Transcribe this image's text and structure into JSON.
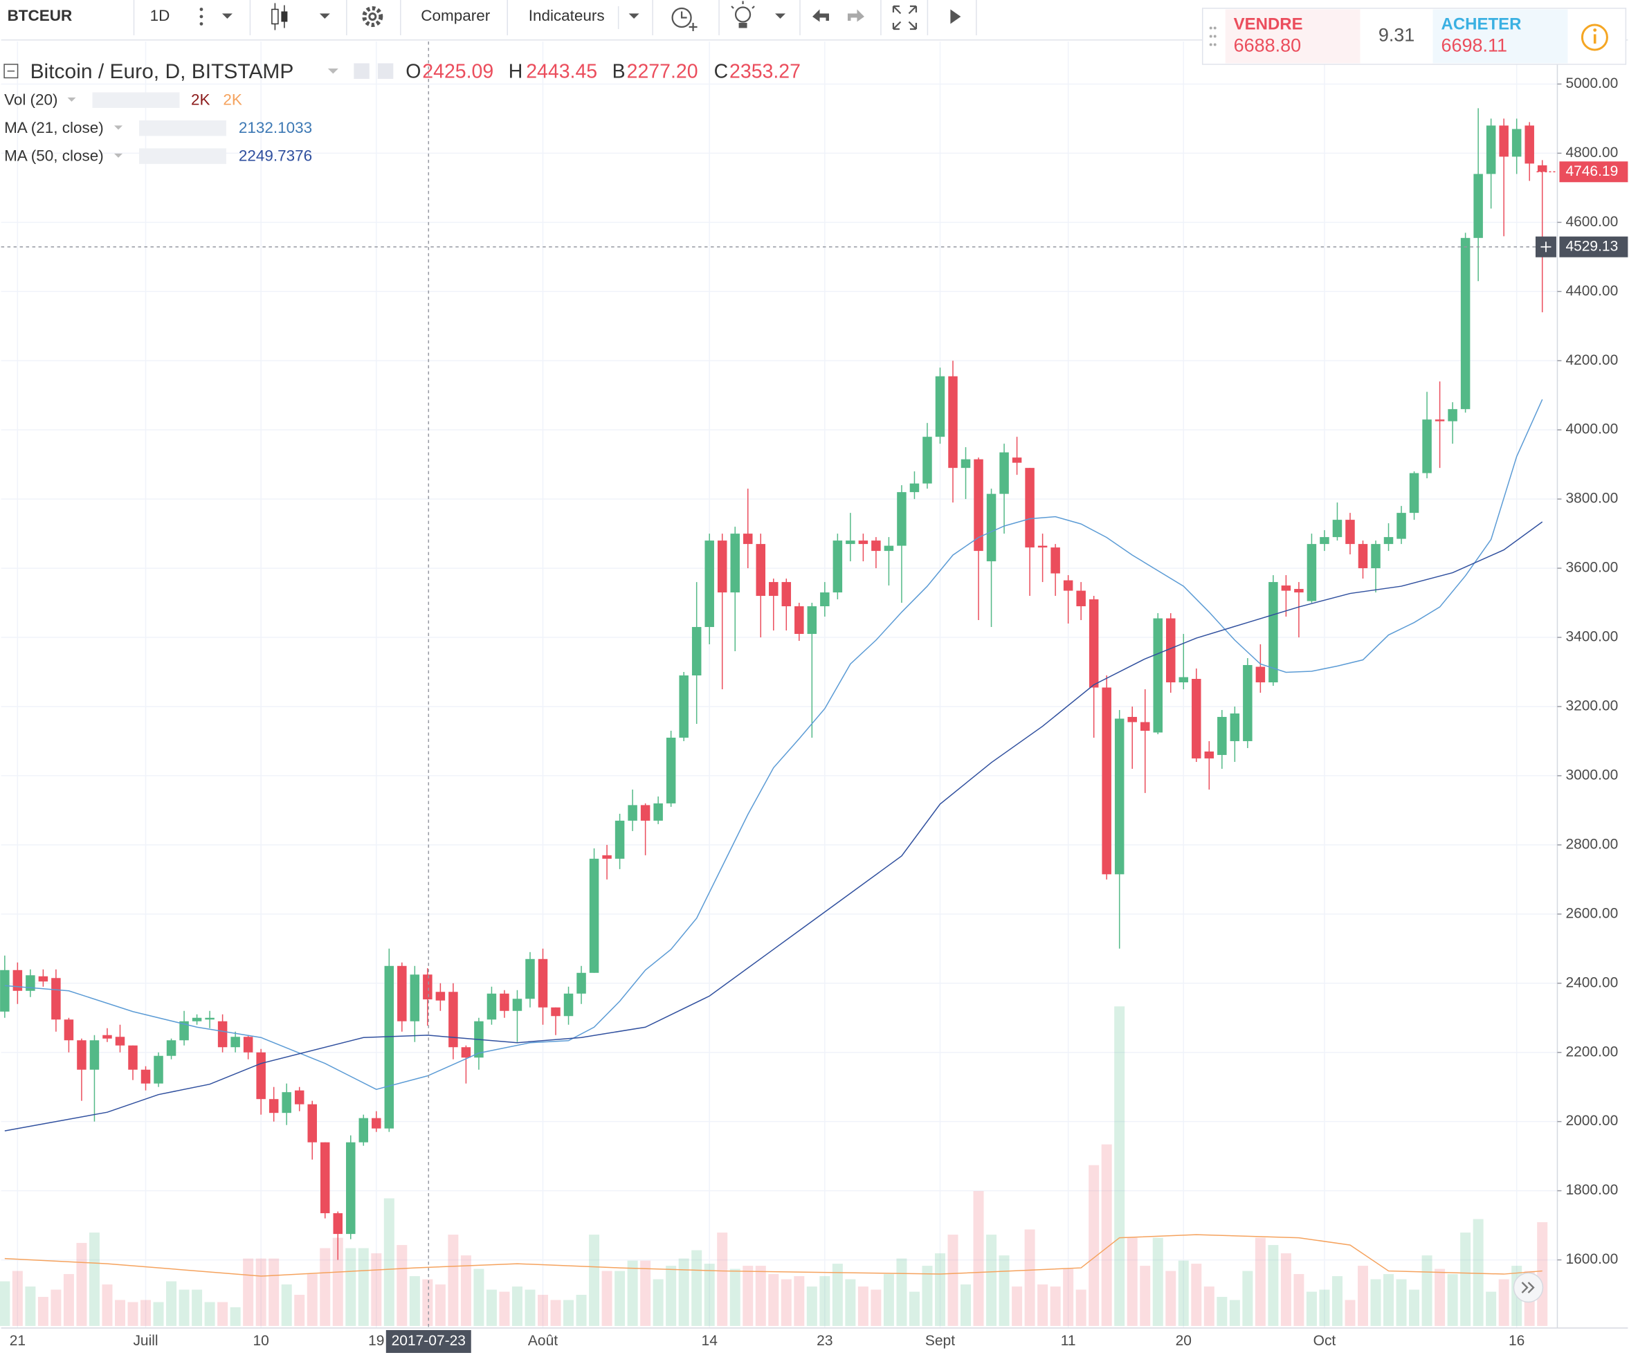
{
  "toolbar": {
    "symbol": "BTCEUR",
    "interval": "1D",
    "compare": "Comparer",
    "indicators": "Indicateurs"
  },
  "trade": {
    "sell_label": "VENDRE",
    "sell_price": "6688.80",
    "spread": "9.31",
    "buy_label": "ACHETER",
    "buy_price": "6698.11"
  },
  "legend": {
    "title": "Bitcoin / Euro, D, BITSTAMP",
    "o_label": "O",
    "o": "2425.09",
    "h_label": "H",
    "h": "2443.45",
    "l_label": "B",
    "l": "2277.20",
    "c_label": "C",
    "c": "2353.27",
    "vol": "Vol (20)",
    "vol_value": "2K",
    "vol_ma_value": "2K",
    "ma21_value": "2132.1033",
    "ma50_value": "2249.7376"
  },
  "chart_data": {
    "type": "candlestick",
    "categories": [
      null,
      "21",
      null,
      null,
      null,
      null,
      null,
      null,
      null,
      null,
      null,
      "Juill",
      null,
      null,
      null,
      null,
      null,
      null,
      null,
      null,
      "10",
      null,
      null,
      null,
      null,
      null,
      null,
      null,
      null,
      "19",
      null,
      null,
      null,
      null,
      null,
      null,
      null,
      null,
      null,
      null,
      null,
      null,
      "Août",
      null,
      null,
      null,
      null,
      null,
      null,
      null,
      null,
      null,
      null,
      null,
      null,
      "14",
      null,
      null,
      null,
      null,
      null,
      null,
      null,
      null,
      "23",
      null,
      null,
      null,
      null,
      null,
      null,
      null,
      null,
      "Sept",
      null,
      null,
      null,
      null,
      null,
      null,
      null,
      null,
      null,
      "11",
      null,
      null,
      null,
      null,
      null,
      null,
      null,
      null,
      "20",
      null,
      null,
      null,
      null,
      null,
      null,
      null,
      null,
      null,
      null,
      "Oct",
      null,
      null,
      null,
      null,
      null,
      null,
      null,
      null,
      null,
      null,
      null,
      null,
      null,
      null,
      "16",
      null,
      null
    ],
    "open": [
      2318,
      2438,
      2378,
      2420,
      2415,
      2295,
      2235,
      2150,
      2250,
      2245,
      2220,
      2150,
      2110,
      2190,
      2235,
      2290,
      2295,
      2290,
      2215,
      2245,
      2200,
      2065,
      2025,
      2090,
      2050,
      1940,
      1735,
      1675,
      1940,
      2010,
      1980,
      2450,
      2290,
      2425.09,
      2375,
      2375,
      2215,
      2185,
      2295,
      2370,
      2320,
      2355,
      2470,
      2330,
      2305,
      2370,
      2430,
      2770,
      2760,
      2870,
      2915,
      2870,
      2920,
      3110,
      3290,
      3430,
      3680,
      3530,
      3700,
      3670,
      3560,
      3560,
      3490,
      3410,
      3490,
      3530,
      3670,
      3680,
      3680,
      3650,
      3665,
      3820,
      3845,
      3980,
      4155,
      3890,
      3915,
      3620,
      3815,
      3920,
      3890,
      3665,
      3660,
      3565,
      3535,
      3510,
      3255,
      2715,
      3170,
      3155,
      3125,
      3455,
      3270,
      3280,
      3070,
      3060,
      3100,
      3100,
      3315,
      3270,
      3550,
      3540,
      3505,
      3670,
      3690,
      3740,
      3670,
      3600,
      3670,
      3685,
      3760,
      3875,
      4030,
      4025,
      4060,
      4555,
      4740,
      4880,
      4790,
      4880,
      4765
    ],
    "high": [
      2480,
      2460,
      2440,
      2440,
      2440,
      2300,
      2240,
      2250,
      2270,
      2280,
      2220,
      2160,
      2200,
      2240,
      2320,
      2310,
      2320,
      2310,
      2260,
      2250,
      2210,
      2100,
      2110,
      2100,
      2060,
      1940,
      1740,
      1960,
      2020,
      2030,
      2500,
      2460,
      2450,
      2443.45,
      2400,
      2400,
      2220,
      2300,
      2390,
      2380,
      2380,
      2490,
      2500,
      2330,
      2390,
      2450,
      2790,
      2800,
      2890,
      2960,
      2920,
      2940,
      3130,
      3300,
      3560,
      3700,
      3700,
      3720,
      3830,
      3700,
      3570,
      3570,
      3500,
      3500,
      3560,
      3700,
      3760,
      3700,
      3690,
      3690,
      3840,
      3880,
      4020,
      4180,
      4200,
      3950,
      3920,
      3830,
      3960,
      3980,
      3890,
      3700,
      3670,
      3580,
      3560,
      3520,
      3290,
      3190,
      3200,
      3250,
      3470,
      3470,
      3410,
      3310,
      3100,
      3190,
      3200,
      3340,
      3380,
      3580,
      3580,
      3560,
      3700,
      3710,
      3790,
      3760,
      3680,
      3680,
      3730,
      3780,
      3880,
      4110,
      4140,
      4080,
      4570,
      4930,
      4900,
      4900,
      4900,
      4890,
      4780
    ],
    "low": [
      2300,
      2340,
      2360,
      2390,
      2260,
      2200,
      2060,
      2000,
      2230,
      2200,
      2120,
      2090,
      2100,
      2180,
      2220,
      2280,
      2270,
      2200,
      2200,
      2180,
      2020,
      2000,
      1990,
      2030,
      1890,
      1720,
      1600,
      1660,
      1930,
      1970,
      1970,
      2260,
      2230,
      2277.2,
      2320,
      2180,
      2110,
      2150,
      2280,
      2300,
      2230,
      2330,
      2280,
      2250,
      2280,
      2340,
      2430,
      2700,
      2730,
      2840,
      2770,
      2860,
      2910,
      3100,
      3150,
      3380,
      3250,
      3360,
      3600,
      3400,
      3420,
      3420,
      3390,
      3110,
      3460,
      3510,
      3620,
      3620,
      3600,
      3550,
      3500,
      3800,
      3830,
      3960,
      3790,
      3800,
      3450,
      3430,
      3700,
      3870,
      3520,
      3560,
      3520,
      3440,
      3450,
      3110,
      2700,
      2500,
      3020,
      2950,
      3120,
      3240,
      3250,
      3040,
      2960,
      3020,
      3040,
      3080,
      3240,
      3260,
      3460,
      3400,
      3500,
      3650,
      3680,
      3640,
      3570,
      3530,
      3650,
      3670,
      3740,
      3860,
      3890,
      3960,
      4050,
      4430,
      4640,
      4560,
      4740,
      4720,
      4340
    ],
    "close": [
      2438,
      2378,
      2423,
      2405,
      2295,
      2235,
      2150,
      2235,
      2240,
      2220,
      2150,
      2110,
      2190,
      2235,
      2290,
      2300,
      2300,
      2215,
      2245,
      2200,
      2065,
      2025,
      2085,
      2050,
      1940,
      1735,
      1675,
      1940,
      2010,
      1980,
      2450,
      2290,
      2425,
      2353.27,
      2350,
      2215,
      2185,
      2290,
      2370,
      2320,
      2355,
      2470,
      2330,
      2305,
      2370,
      2430,
      2760,
      2760,
      2870,
      2915,
      2870,
      2920,
      3110,
      3290,
      3430,
      3680,
      3530,
      3700,
      3670,
      3520,
      3520,
      3490,
      3410,
      3490,
      3530,
      3680,
      3680,
      3670,
      3650,
      3665,
      3820,
      3845,
      3980,
      4155,
      3890,
      3915,
      3650,
      3815,
      3935,
      3905,
      3660,
      3660,
      3585,
      3535,
      3490,
      3255,
      2715,
      3165,
      3155,
      3130,
      3455,
      3270,
      3285,
      3050,
      3050,
      3170,
      3180,
      3320,
      3270,
      3560,
      3535,
      3530,
      3670,
      3690,
      3740,
      3670,
      3600,
      3670,
      3690,
      3760,
      3875,
      4030,
      4025,
      4060,
      4555,
      4740,
      4880,
      4790,
      4870,
      4770,
      4746.19
    ],
    "volume": [
      1720,
      2120,
      1520,
      1120,
      1400,
      2000,
      3200,
      3600,
      1600,
      1000,
      920,
      1000,
      920,
      1720,
      1400,
      1400,
      920,
      920,
      720,
      2600,
      2600,
      2600,
      1600,
      1200,
      2000,
      3000,
      3400,
      3000,
      3000,
      2800,
      4920,
      3120,
      1920,
      1800,
      1600,
      3520,
      2720,
      2200,
      1400,
      1320,
      1520,
      1400,
      1200,
      1000,
      1000,
      1200,
      3520,
      2120,
      2120,
      2520,
      2520,
      1800,
      2320,
      2600,
      2920,
      2400,
      3600,
      2200,
      2320,
      2320,
      2000,
      1800,
      1920,
      1520,
      1920,
      2400,
      1800,
      1520,
      1400,
      2000,
      2600,
      1320,
      2320,
      2800,
      3520,
      1600,
      5200,
      3520,
      2720,
      1520,
      3720,
      1600,
      1520,
      2200,
      1400,
      6200,
      7000,
      12320,
      3400,
      2320,
      3400,
      2120,
      2520,
      2400,
      1520,
      1120,
      1000,
      2120,
      3400,
      3120,
      2800,
      2000,
      1320,
      1400,
      1920,
      1000,
      2320,
      1800,
      2000,
      1800,
      1400,
      2720,
      2200,
      2000,
      3600,
      4120,
      1320,
      1800,
      2320,
      2120,
      4000
    ],
    "series": [
      {
        "name": "MA (21, close)",
        "color": "#5b9bd5",
        "x": [
          0,
          5,
          10,
          15,
          20,
          25,
          29,
          33,
          37,
          41,
          44,
          46,
          48,
          50,
          52,
          54,
          56,
          58,
          60,
          62,
          64,
          66,
          68,
          70,
          72,
          74,
          76,
          78,
          80,
          82,
          84,
          86,
          88,
          90,
          92,
          94,
          96,
          98,
          100,
          102,
          104,
          106,
          108,
          110,
          112,
          114,
          116,
          118,
          120
        ],
        "values": [
          2393,
          2378,
          2318,
          2273,
          2243,
          2168,
          2093,
          2132.1,
          2198,
          2228,
          2234,
          2273,
          2348,
          2438,
          2498,
          2588,
          2738,
          2888,
          3023,
          3107,
          3194,
          3323,
          3392,
          3473,
          3548,
          3638,
          3689,
          3722,
          3743,
          3749,
          3728,
          3689,
          3638,
          3593,
          3548,
          3473,
          3392,
          3323,
          3299,
          3302,
          3317,
          3335,
          3407,
          3443,
          3488,
          3578,
          3683,
          3923,
          4088
        ]
      },
      {
        "name": "MA (50, close)",
        "color": "#2f4f9e",
        "x": [
          0,
          8,
          12,
          16,
          20,
          28,
          33,
          40,
          45,
          50,
          55,
          60,
          65,
          70,
          73,
          77,
          81,
          85,
          89,
          93,
          97,
          101,
          105,
          109,
          113,
          117,
          120
        ],
        "values": [
          1973,
          2027,
          2078,
          2108,
          2168,
          2243,
          2249.7,
          2228,
          2243,
          2273,
          2363,
          2498,
          2633,
          2768,
          2918,
          3038,
          3143,
          3263,
          3338,
          3398,
          3443,
          3488,
          3527,
          3548,
          3587,
          3653,
          3734
        ]
      }
    ],
    "volume_ma": {
      "color": "#f5a25d",
      "x": [
        0,
        8,
        20,
        32,
        40,
        48,
        56,
        73,
        84,
        87,
        93,
        101,
        105,
        108,
        117,
        120
      ],
      "values": [
        2600,
        2400,
        1920,
        2240,
        2400,
        2240,
        2120,
        2000,
        2240,
        3400,
        3520,
        3400,
        3120,
        2120,
        2000,
        2120
      ]
    },
    "up_color": "#53b987",
    "down_color": "#eb4d5c",
    "volume_up_color": "#53b98738",
    "volume_down_color": "#eb4d5c30",
    "ylim": [
      1409,
      5123
    ],
    "vlim": [
      0,
      49520
    ],
    "grid": true,
    "yticks": [
      {
        "value": 1600,
        "label": "1600.00"
      },
      {
        "value": 1800,
        "label": "1800.00"
      },
      {
        "value": 2000,
        "label": "2000.00"
      },
      {
        "value": 2200,
        "label": "2200.00"
      },
      {
        "value": 2400,
        "label": "2400.00"
      },
      {
        "value": 2600,
        "label": "2600.00"
      },
      {
        "value": 2800,
        "label": "2800.00"
      },
      {
        "value": 3000,
        "label": "3000.00"
      },
      {
        "value": 3200,
        "label": "3200.00"
      },
      {
        "value": 3400,
        "label": "3400.00"
      },
      {
        "value": 3600,
        "label": "3600.00"
      },
      {
        "value": 3800,
        "label": "3800.00"
      },
      {
        "value": 4000,
        "label": "4000.00"
      },
      {
        "value": 4200,
        "label": "4200.00"
      },
      {
        "value": 4400,
        "label": "4400.00"
      },
      {
        "value": 4600,
        "label": "4600.00"
      },
      {
        "value": 4800,
        "label": "4800.00"
      },
      {
        "value": 5000,
        "label": "5000.00"
      }
    ],
    "last_price": {
      "value": 4746.19,
      "label": "4746.19"
    },
    "crosshair": {
      "date": "2017-07-23",
      "price": {
        "value": 4529.13,
        "label": "4529.13"
      }
    }
  }
}
